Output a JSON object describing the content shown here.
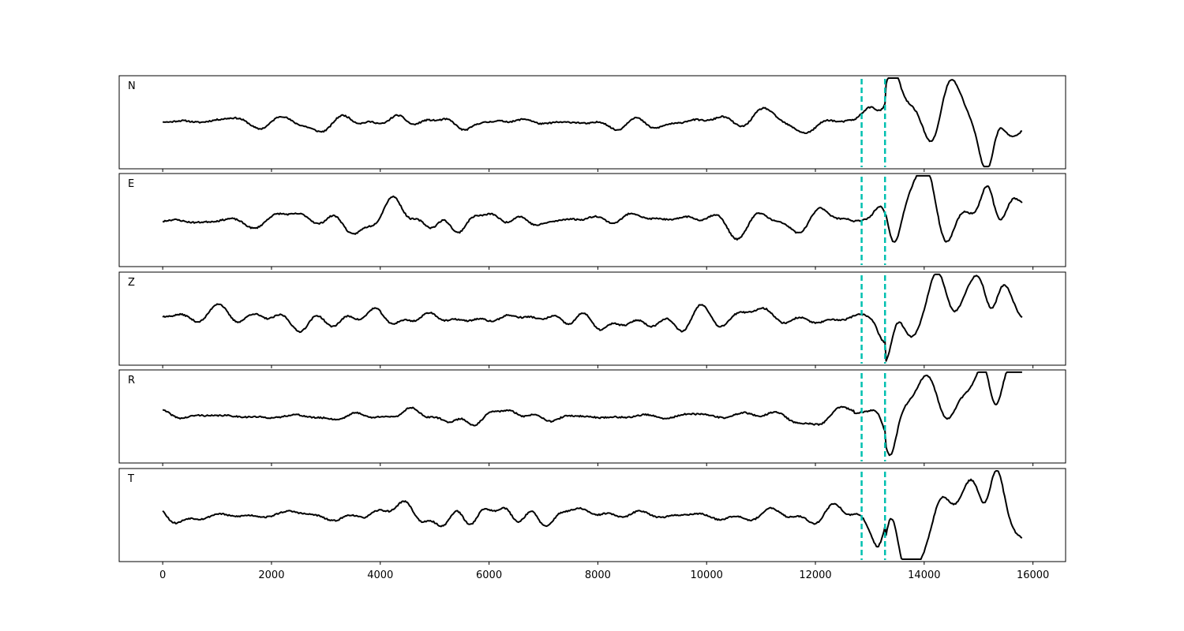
{
  "chart_data": {
    "type": "line",
    "title": "",
    "xlabel": "",
    "ylabel": "",
    "xlim": [
      -800,
      16600
    ],
    "x_ticks": [
      0,
      2000,
      4000,
      6000,
      8000,
      10000,
      12000,
      14000,
      16000
    ],
    "x_tick_labels": [
      "0",
      "2000",
      "4000",
      "6000",
      "8000",
      "10000",
      "12000",
      "14000",
      "16000"
    ],
    "n_samples": 15800,
    "grid": false,
    "legend": "none",
    "colors": {
      "trace": "#000000",
      "marker": "#00c0b0"
    },
    "vertical_markers": [
      12850,
      13280
    ],
    "panels": [
      {
        "label": "N",
        "ylim": [
          -1,
          1
        ]
      },
      {
        "label": "E",
        "ylim": [
          -1,
          1
        ]
      },
      {
        "label": "Z",
        "ylim": [
          -1,
          1
        ]
      },
      {
        "label": "R",
        "ylim": [
          -1,
          1
        ]
      },
      {
        "label": "T",
        "ylim": [
          -1,
          1
        ]
      }
    ]
  }
}
